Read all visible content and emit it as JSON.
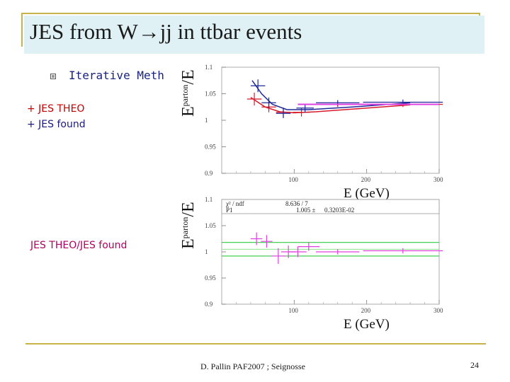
{
  "slide": {
    "title": "JES from W→jj in ttbar events",
    "bullet": "Iterative Meth",
    "legend_red": "+ JES THEO",
    "legend_blue": "+ JES found",
    "ratio_label": "JES THEO/JES found",
    "footer": "D. Pallin  PAF2007 ; Seignosse",
    "page_number": "24"
  },
  "colors": {
    "red": "#d81b2a",
    "blue": "#1f2a9a",
    "magenta": "#e040e0",
    "green": "#2ecc40",
    "title_bg": "#dff1f5",
    "rule": "#c8b24a"
  },
  "chart_data": [
    {
      "type": "scatter",
      "xlabel": "E (GeV)",
      "ylabel": "E^parton/E",
      "xlim": [
        0,
        300
      ],
      "ylim": [
        0.9,
        1.1
      ],
      "xticks": [
        "100",
        "200",
        "300"
      ],
      "yticks": [
        "0.9",
        "0.95",
        "1",
        "1.05",
        "1.1"
      ],
      "series": [
        {
          "color": "#d81b2a",
          "points": [
            {
              "x": 45,
              "y": 1.04,
              "xerr": 10,
              "yerr": 0.012
            },
            {
              "x": 65,
              "y": 1.025,
              "xerr": 10,
              "yerr": 0.01
            },
            {
              "x": 85,
              "y": 1.015,
              "xerr": 10,
              "yerr": 0.009
            },
            {
              "x": 110,
              "y": 1.015,
              "xerr": 12,
              "yerr": 0.008
            },
            {
              "x": 160,
              "y": 1.03,
              "xerr": 30,
              "yerr": 0.005
            },
            {
              "x": 250,
              "y": 1.03,
              "xerr": 55,
              "yerr": 0.005
            }
          ],
          "fit": [
            [
              40,
              1.043
            ],
            [
              60,
              1.025
            ],
            [
              80,
              1.016
            ],
            [
              100,
              1.014
            ],
            [
              130,
              1.016
            ],
            [
              180,
              1.021
            ],
            [
              260,
              1.029
            ]
          ]
        },
        {
          "color": "#1f2a9a",
          "points": [
            {
              "x": 50,
              "y": 1.065,
              "xerr": 10,
              "yerr": 0.012
            },
            {
              "x": 65,
              "y": 1.033,
              "xerr": 10,
              "yerr": 0.01
            },
            {
              "x": 85,
              "y": 1.013,
              "xerr": 10,
              "yerr": 0.009
            },
            {
              "x": 115,
              "y": 1.023,
              "xerr": 12,
              "yerr": 0.008
            },
            {
              "x": 160,
              "y": 1.033,
              "xerr": 30,
              "yerr": 0.005
            },
            {
              "x": 250,
              "y": 1.034,
              "xerr": 55,
              "yerr": 0.005
            }
          ],
          "fit": [
            [
              42,
              1.075
            ],
            [
              55,
              1.05
            ],
            [
              70,
              1.03
            ],
            [
              90,
              1.02
            ],
            [
              120,
              1.02
            ],
            [
              180,
              1.025
            ],
            [
              260,
              1.033
            ]
          ]
        }
      ]
    },
    {
      "type": "scatter",
      "xlabel": "E (GeV)",
      "ylabel": "E^parton/E",
      "xlim": [
        0,
        300
      ],
      "ylim": [
        0.9,
        1.1
      ],
      "xticks": [
        "100",
        "200",
        "300"
      ],
      "yticks": [
        "0.9",
        "0.95",
        "1",
        "1.05",
        "1.1"
      ],
      "stats": {
        "row1_label": "χ² / ndf",
        "row1_value": "8.636  /  7",
        "row2_label": "P1",
        "row2_value": "1.005  ±",
        "row2_error": "0.3203E-02"
      },
      "fit_constant": 1.005,
      "fit_band": [
        0.992,
        1.018
      ],
      "points": [
        {
          "x": 48,
          "y": 1.025,
          "xerr": 8,
          "yerr": 0.012
        },
        {
          "x": 62,
          "y": 1.02,
          "xerr": 8,
          "yerr": 0.012
        },
        {
          "x": 78,
          "y": 0.992,
          "xerr": 10,
          "yerr": 0.015
        },
        {
          "x": 92,
          "y": 1.0,
          "xerr": 10,
          "yerr": 0.012
        },
        {
          "x": 105,
          "y": 1.0,
          "xerr": 12,
          "yerr": 0.01
        },
        {
          "x": 120,
          "y": 1.01,
          "xerr": 15,
          "yerr": 0.008
        },
        {
          "x": 160,
          "y": 1.0,
          "xerr": 30,
          "yerr": 0.005
        },
        {
          "x": 250,
          "y": 1.002,
          "xerr": 55,
          "yerr": 0.005
        }
      ]
    }
  ]
}
